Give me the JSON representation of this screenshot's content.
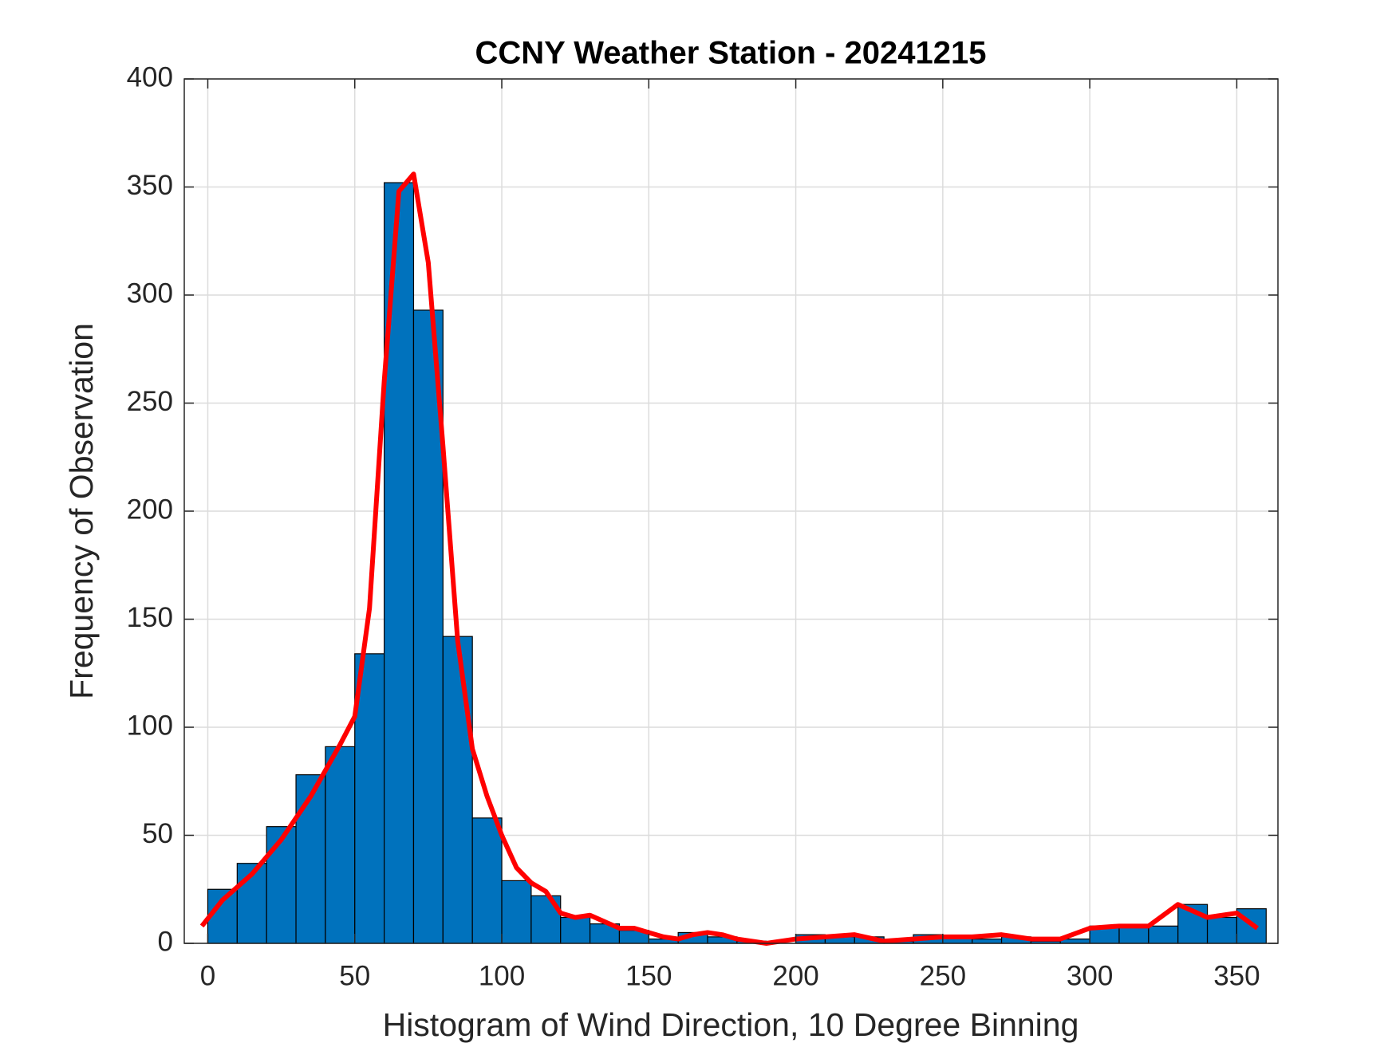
{
  "chart_data": {
    "type": "histogram",
    "title": "CCNY Weather Station - 20241215",
    "xlabel": "Histogram of Wind Direction, 10 Degree Binning",
    "ylabel": "Frequency of Observation",
    "bins": [
      0,
      10,
      20,
      30,
      40,
      50,
      60,
      70,
      80,
      90,
      100,
      110,
      120,
      130,
      140,
      150,
      160,
      170,
      180,
      190,
      200,
      210,
      220,
      230,
      240,
      250,
      260,
      270,
      280,
      290,
      300,
      310,
      320,
      330,
      340,
      350,
      360
    ],
    "values": [
      25,
      37,
      54,
      78,
      91,
      134,
      352,
      293,
      142,
      58,
      29,
      22,
      12,
      9,
      6,
      2,
      5,
      3,
      1,
      0,
      4,
      3,
      3,
      1,
      4,
      3,
      2,
      3,
      1,
      2,
      8,
      8,
      8,
      18,
      12,
      16
    ],
    "color": "#0072bd",
    "line": {
      "color": "#ff0000",
      "x": [
        -2,
        5,
        15,
        25,
        35,
        45,
        50,
        55,
        60,
        65,
        70,
        75,
        80,
        85,
        90,
        95,
        100,
        105,
        110,
        115,
        120,
        125,
        130,
        135,
        140,
        145,
        150,
        155,
        160,
        165,
        170,
        175,
        180,
        190,
        200,
        210,
        220,
        230,
        240,
        250,
        260,
        270,
        280,
        290,
        300,
        310,
        320,
        330,
        340,
        350,
        357
      ],
      "values": [
        8,
        20,
        32,
        48,
        68,
        92,
        105,
        155,
        260,
        348,
        356,
        315,
        230,
        140,
        90,
        68,
        50,
        35,
        28,
        24,
        14,
        12,
        13,
        10,
        7,
        7,
        5,
        3,
        2,
        4,
        5,
        4,
        2,
        0,
        2,
        3,
        4,
        1,
        2,
        3,
        3,
        4,
        2,
        2,
        7,
        8,
        8,
        18,
        12,
        14,
        7
      ]
    },
    "xlim": [
      -8,
      364
    ],
    "ylim": [
      0,
      400
    ],
    "xticks": [
      0,
      50,
      100,
      150,
      200,
      250,
      300,
      350
    ],
    "yticks": [
      0,
      50,
      100,
      150,
      200,
      250,
      300,
      350,
      400
    ],
    "grid": true
  }
}
